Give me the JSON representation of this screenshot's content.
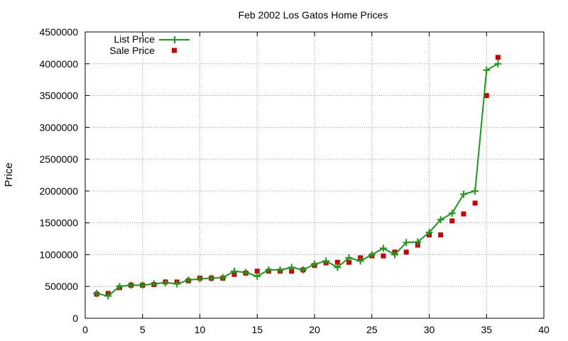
{
  "chart_data": {
    "type": "line",
    "title": "Feb 2002 Los Gatos Home Prices",
    "xlabel": "",
    "ylabel": "Price",
    "xlim": [
      0,
      40
    ],
    "ylim": [
      0,
      4500000
    ],
    "xticks": [
      0,
      5,
      10,
      15,
      20,
      25,
      30,
      35,
      40
    ],
    "yticks": [
      0,
      500000,
      1000000,
      1500000,
      2000000,
      2500000,
      3000000,
      3500000,
      4000000,
      4500000
    ],
    "grid": true,
    "legend_position": "top-left",
    "series": [
      {
        "name": "List Price",
        "style": "linespoints",
        "marker": "plus",
        "color": "#1a9a1a",
        "x": [
          1,
          2,
          3,
          4,
          5,
          6,
          7,
          8,
          9,
          10,
          11,
          12,
          13,
          14,
          15,
          16,
          17,
          18,
          19,
          20,
          21,
          22,
          23,
          24,
          25,
          26,
          27,
          28,
          29,
          30,
          31,
          32,
          33,
          34,
          35,
          36
        ],
        "y": [
          390000,
          350000,
          500000,
          520000,
          520000,
          540000,
          560000,
          540000,
          600000,
          620000,
          630000,
          640000,
          740000,
          720000,
          660000,
          760000,
          760000,
          800000,
          760000,
          850000,
          900000,
          800000,
          950000,
          900000,
          1000000,
          1100000,
          1000000,
          1190000,
          1200000,
          1350000,
          1550000,
          1650000,
          1950000,
          2000000,
          3900000,
          4000000
        ]
      },
      {
        "name": "Sale Price",
        "style": "points",
        "marker": "square",
        "color": "#cc0000",
        "x": [
          1,
          2,
          3,
          4,
          5,
          6,
          7,
          8,
          9,
          10,
          11,
          12,
          13,
          14,
          15,
          16,
          17,
          18,
          19,
          20,
          21,
          22,
          23,
          24,
          25,
          26,
          27,
          28,
          29,
          30,
          31,
          32,
          33,
          34,
          35,
          36
        ],
        "y": [
          380000,
          390000,
          480000,
          520000,
          520000,
          530000,
          570000,
          570000,
          590000,
          630000,
          630000,
          630000,
          690000,
          710000,
          740000,
          740000,
          740000,
          740000,
          760000,
          830000,
          870000,
          880000,
          880000,
          950000,
          980000,
          980000,
          1040000,
          1040000,
          1150000,
          1310000,
          1310000,
          1530000,
          1640000,
          1810000,
          3500000,
          4100000
        ]
      }
    ]
  }
}
